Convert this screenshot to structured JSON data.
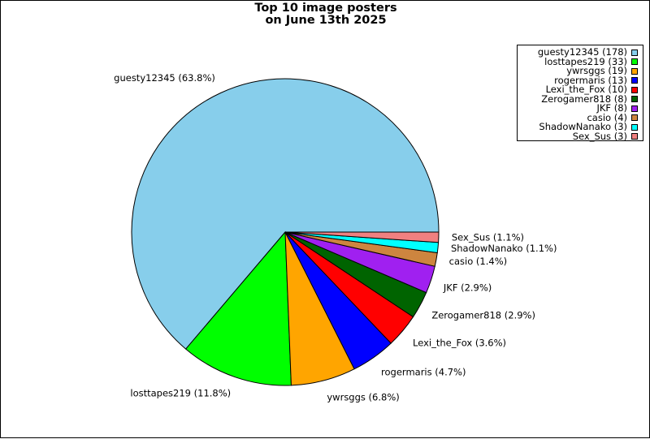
{
  "chart_data": {
    "type": "pie",
    "title_lines": [
      "Top 10 image posters",
      "on June 13th 2025"
    ],
    "slices": [
      {
        "name": "guesty12345",
        "value": 178,
        "percent_label": "63.8%",
        "color": "#87ceeb"
      },
      {
        "name": "losttapes219",
        "value": 33,
        "percent_label": "11.8%",
        "color": "#00ff00"
      },
      {
        "name": "ywrsggs",
        "value": 19,
        "percent_label": "6.8%",
        "color": "#ffa500"
      },
      {
        "name": "rogermaris",
        "value": 13,
        "percent_label": "4.7%",
        "color": "#0000ff"
      },
      {
        "name": "Lexi_the_Fox",
        "value": 10,
        "percent_label": "3.6%",
        "color": "#ff0000"
      },
      {
        "name": "Zerogamer818",
        "value": 8,
        "percent_label": "2.9%",
        "color": "#006400"
      },
      {
        "name": "JKF",
        "value": 8,
        "percent_label": "2.9%",
        "color": "#a020f0"
      },
      {
        "name": "casio",
        "value": 4,
        "percent_label": "1.4%",
        "color": "#cd853f"
      },
      {
        "name": "ShadowNanako",
        "value": 3,
        "percent_label": "1.1%",
        "color": "#00ffff"
      },
      {
        "name": "Sex_Sus",
        "value": 3,
        "percent_label": "1.1%",
        "color": "#f08080"
      }
    ],
    "slice_labels": [
      "guesty12345 (63.8%)",
      "losttapes219 (11.8%)",
      "ywrsggs (6.8%)",
      "rogermaris (4.7%)",
      "Lexi_the_Fox (3.6%)",
      "Zerogamer818 (2.9%)",
      "JKF (2.9%)",
      "casio (1.4%)",
      "ShadowNanako (1.1%)",
      "Sex_Sus (1.1%)"
    ],
    "legend_entries": [
      "guesty12345 (178)",
      "losttapes219 (33)",
      "ywrsggs (19)",
      "rogermaris (13)",
      "Lexi_the_Fox (10)",
      "Zerogamer818 (8)",
      "JKF (8)",
      "casio (4)",
      "ShadowNanako (3)",
      "Sex_Sus (3)"
    ],
    "legend_position": "top-right",
    "start_angle_deg": 0,
    "direction": "counterclockwise"
  }
}
